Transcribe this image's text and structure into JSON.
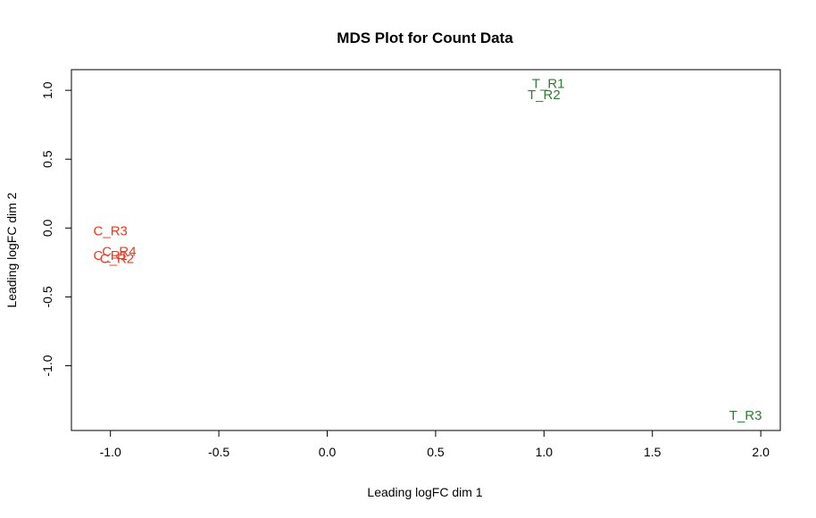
{
  "chart_data": {
    "type": "scatter",
    "title": "MDS Plot for Count Data",
    "xlabel": "Leading logFC dim 1",
    "ylabel": "Leading logFC dim 2",
    "xlim": [
      -1.18,
      2.09
    ],
    "ylim": [
      -1.47,
      1.15
    ],
    "xticks": [
      -1.0,
      -0.5,
      0.0,
      0.5,
      1.0,
      1.5,
      2.0
    ],
    "xtick_labels": [
      "-1.0",
      "-0.5",
      "0.0",
      "0.5",
      "1.0",
      "1.5",
      "2.0"
    ],
    "yticks": [
      -1.0,
      -0.5,
      0.0,
      0.5,
      1.0
    ],
    "ytick_labels": [
      "-1.0",
      "-0.5",
      "0.0",
      "0.5",
      "1.0"
    ],
    "grid": false,
    "points": [
      {
        "label": "C_R3",
        "x": -1.0,
        "y": -0.02,
        "color": "#ee3a1e"
      },
      {
        "label": "C_R4",
        "x": -0.96,
        "y": -0.17,
        "color": "#ee3a1e"
      },
      {
        "label": "C_R1",
        "x": -1.0,
        "y": -0.2,
        "color": "#ee3a1e"
      },
      {
        "label": "C_R2",
        "x": -0.97,
        "y": -0.22,
        "color": "#ee3a1e"
      },
      {
        "label": "T_R1",
        "x": 1.02,
        "y": 1.05,
        "color": "#2e7d32"
      },
      {
        "label": "T_R2",
        "x": 1.0,
        "y": 0.97,
        "color": "#2e7d32"
      },
      {
        "label": "T_R3",
        "x": 1.93,
        "y": -1.36,
        "color": "#2e7d32"
      }
    ]
  }
}
